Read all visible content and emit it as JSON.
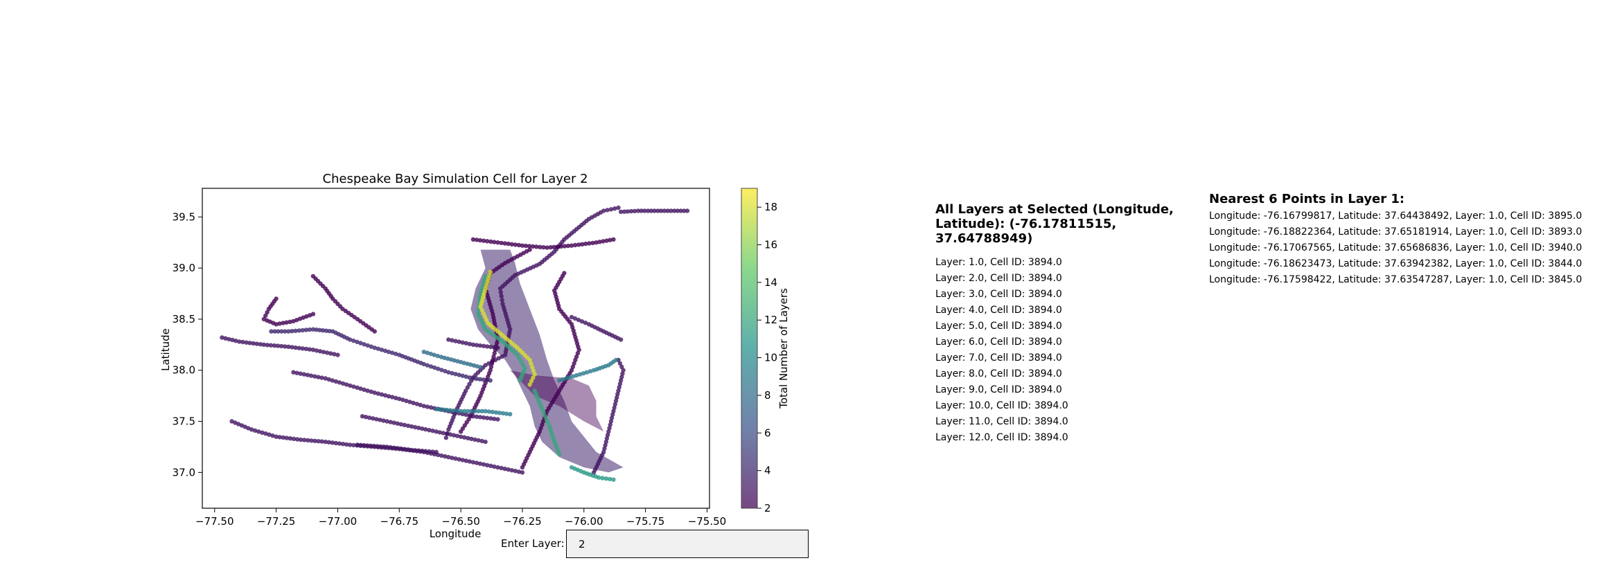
{
  "chart_data": {
    "type": "scatter",
    "title": "Chespeake Bay Simulation Cell for Layer 2",
    "xlabel": "Longitude",
    "ylabel": "Latitude",
    "xlim": [
      -77.55,
      -75.49
    ],
    "ylim": [
      36.65,
      39.78
    ],
    "xticks": [
      -77.5,
      -77.25,
      -77.0,
      -76.75,
      -76.5,
      -76.25,
      -76.0,
      -75.75,
      -75.5
    ],
    "xtick_labels": [
      "−77.50",
      "−77.25",
      "−77.00",
      "−76.75",
      "−76.50",
      "−76.25",
      "−76.00",
      "−75.75",
      "−75.50"
    ],
    "yticks": [
      37.0,
      37.5,
      38.0,
      38.5,
      39.0,
      39.5
    ],
    "ytick_labels": [
      "37.0",
      "37.5",
      "38.0",
      "38.5",
      "39.0",
      "39.5"
    ],
    "grid": false,
    "colorbar": {
      "label": "Total Number of Layers",
      "min": 2,
      "max": 19,
      "ticks": [
        2,
        4,
        6,
        8,
        10,
        12,
        14,
        16,
        18
      ],
      "colormap": "viridis"
    },
    "tracks": [
      {
        "value": 3,
        "points": [
          [
            -76.56,
            37.34
          ],
          [
            -76.55,
            37.42
          ],
          [
            -76.52,
            37.6
          ],
          [
            -76.48,
            37.8
          ],
          [
            -76.45,
            37.93
          ],
          [
            -76.4,
            38.05
          ],
          [
            -76.36,
            38.1
          ],
          [
            -76.32,
            38.15
          ],
          [
            -76.3,
            38.4
          ],
          [
            -76.33,
            38.65
          ],
          [
            -76.34,
            38.8
          ],
          [
            -76.28,
            38.93
          ],
          [
            -76.18,
            39.04
          ],
          [
            -76.12,
            39.16
          ],
          [
            -76.08,
            39.28
          ],
          [
            -76.03,
            39.38
          ],
          [
            -75.98,
            39.48
          ],
          [
            -75.92,
            39.56
          ],
          [
            -75.86,
            39.59
          ]
        ]
      },
      {
        "value": 2,
        "points": [
          [
            -76.5,
            37.4
          ],
          [
            -76.46,
            37.55
          ],
          [
            -76.42,
            37.75
          ],
          [
            -76.38,
            38.0
          ],
          [
            -76.35,
            38.3
          ],
          [
            -76.37,
            38.55
          ],
          [
            -76.4,
            38.8
          ],
          [
            -76.38,
            38.95
          ],
          [
            -76.32,
            39.05
          ],
          [
            -76.22,
            39.18
          ]
        ]
      },
      {
        "value": 2,
        "points": [
          [
            -76.25,
            37.05
          ],
          [
            -76.22,
            37.2
          ],
          [
            -76.18,
            37.4
          ],
          [
            -76.15,
            37.6
          ],
          [
            -76.1,
            37.8
          ],
          [
            -76.05,
            38.0
          ],
          [
            -76.02,
            38.2
          ],
          [
            -76.05,
            38.45
          ],
          [
            -76.1,
            38.6
          ],
          [
            -76.12,
            38.78
          ],
          [
            -76.08,
            38.95
          ]
        ]
      },
      {
        "value": 3,
        "points": [
          [
            -75.96,
            37.0
          ],
          [
            -75.92,
            37.2
          ],
          [
            -75.9,
            37.4
          ],
          [
            -75.88,
            37.6
          ],
          [
            -75.86,
            37.8
          ],
          [
            -75.84,
            38.0
          ],
          [
            -75.86,
            38.1
          ]
        ]
      },
      {
        "value": 12,
        "points": [
          [
            -76.4,
            38.92
          ],
          [
            -76.42,
            38.75
          ],
          [
            -76.43,
            38.55
          ],
          [
            -76.4,
            38.4
          ],
          [
            -76.33,
            38.28
          ],
          [
            -76.27,
            38.15
          ],
          [
            -76.24,
            38.02
          ],
          [
            -76.26,
            37.9
          ]
        ]
      },
      {
        "value": 18,
        "points": [
          [
            -76.38,
            38.96
          ],
          [
            -76.4,
            38.8
          ],
          [
            -76.42,
            38.62
          ],
          [
            -76.39,
            38.46
          ],
          [
            -76.33,
            38.34
          ],
          [
            -76.27,
            38.22
          ],
          [
            -76.22,
            38.1
          ],
          [
            -76.2,
            37.96
          ],
          [
            -76.22,
            37.86
          ]
        ]
      },
      {
        "value": 12,
        "points": [
          [
            -76.2,
            37.8
          ],
          [
            -76.17,
            37.62
          ],
          [
            -76.14,
            37.45
          ],
          [
            -76.12,
            37.3
          ],
          [
            -76.1,
            37.18
          ]
        ]
      },
      {
        "value": 11,
        "points": [
          [
            -76.05,
            37.05
          ],
          [
            -76.0,
            37.0
          ],
          [
            -75.94,
            36.95
          ],
          [
            -75.88,
            36.93
          ]
        ]
      },
      {
        "value": 9,
        "points": [
          [
            -76.1,
            37.9
          ],
          [
            -76.03,
            37.95
          ],
          [
            -75.96,
            38.0
          ],
          [
            -75.9,
            38.05
          ],
          [
            -75.87,
            38.1
          ]
        ]
      },
      {
        "value": 3,
        "points": [
          [
            -77.47,
            38.32
          ],
          [
            -77.4,
            38.28
          ],
          [
            -77.3,
            38.25
          ],
          [
            -77.2,
            38.23
          ],
          [
            -77.1,
            38.2
          ],
          [
            -77.0,
            38.15
          ]
        ]
      },
      {
        "value": 4,
        "points": [
          [
            -77.27,
            38.38
          ],
          [
            -77.2,
            38.38
          ],
          [
            -77.1,
            38.4
          ],
          [
            -77.02,
            38.38
          ],
          [
            -76.95,
            38.3
          ],
          [
            -76.85,
            38.22
          ],
          [
            -76.75,
            38.15
          ],
          [
            -76.65,
            38.06
          ],
          [
            -76.55,
            37.98
          ],
          [
            -76.45,
            37.92
          ],
          [
            -76.38,
            37.9
          ]
        ]
      },
      {
        "value": 3,
        "points": [
          [
            -77.18,
            37.98
          ],
          [
            -77.05,
            37.92
          ],
          [
            -76.95,
            37.85
          ],
          [
            -76.85,
            37.78
          ],
          [
            -76.75,
            37.72
          ],
          [
            -76.65,
            37.65
          ],
          [
            -76.55,
            37.6
          ],
          [
            -76.45,
            37.55
          ],
          [
            -76.35,
            37.52
          ]
        ]
      },
      {
        "value": 2,
        "points": [
          [
            -77.25,
            38.7
          ],
          [
            -77.28,
            38.6
          ],
          [
            -77.3,
            38.5
          ],
          [
            -77.25,
            38.45
          ],
          [
            -77.18,
            38.48
          ],
          [
            -77.1,
            38.55
          ]
        ]
      },
      {
        "value": 2,
        "points": [
          [
            -77.1,
            38.92
          ],
          [
            -77.05,
            38.8
          ],
          [
            -77.02,
            38.7
          ],
          [
            -76.98,
            38.6
          ],
          [
            -76.92,
            38.5
          ],
          [
            -76.85,
            38.38
          ]
        ]
      },
      {
        "value": 3,
        "points": [
          [
            -77.43,
            37.5
          ],
          [
            -77.35,
            37.42
          ],
          [
            -77.25,
            37.35
          ],
          [
            -77.15,
            37.32
          ],
          [
            -77.05,
            37.3
          ],
          [
            -76.95,
            37.27
          ],
          [
            -76.85,
            37.25
          ],
          [
            -76.75,
            37.23
          ],
          [
            -76.65,
            37.2
          ],
          [
            -76.55,
            37.15
          ],
          [
            -76.45,
            37.1
          ],
          [
            -76.35,
            37.05
          ],
          [
            -76.25,
            37.0
          ]
        ]
      },
      {
        "value": 3,
        "points": [
          [
            -76.9,
            37.55
          ],
          [
            -76.8,
            37.5
          ],
          [
            -76.7,
            37.45
          ],
          [
            -76.6,
            37.4
          ],
          [
            -76.5,
            37.35
          ],
          [
            -76.4,
            37.3
          ]
        ]
      },
      {
        "value": 3,
        "points": [
          [
            -76.92,
            37.27
          ],
          [
            -76.8,
            37.25
          ],
          [
            -76.7,
            37.22
          ],
          [
            -76.6,
            37.2
          ]
        ]
      },
      {
        "value": 8,
        "points": [
          [
            -76.65,
            38.18
          ],
          [
            -76.58,
            38.13
          ],
          [
            -76.5,
            38.08
          ],
          [
            -76.42,
            38.03
          ]
        ]
      },
      {
        "value": 9,
        "points": [
          [
            -76.6,
            37.62
          ],
          [
            -76.5,
            37.6
          ],
          [
            -76.4,
            37.6
          ],
          [
            -76.3,
            37.57
          ]
        ]
      },
      {
        "value": 3,
        "points": [
          [
            -76.05,
            38.52
          ],
          [
            -75.98,
            38.45
          ],
          [
            -75.92,
            38.38
          ],
          [
            -75.85,
            38.3
          ]
        ]
      },
      {
        "value": 2,
        "points": [
          [
            -76.45,
            39.28
          ],
          [
            -76.35,
            39.25
          ],
          [
            -76.25,
            39.22
          ],
          [
            -76.15,
            39.2
          ],
          [
            -76.05,
            39.22
          ],
          [
            -75.95,
            39.25
          ],
          [
            -75.88,
            39.28
          ]
        ]
      },
      {
        "value": 3,
        "points": [
          [
            -75.85,
            39.55
          ],
          [
            -75.78,
            39.56
          ],
          [
            -75.7,
            39.56
          ],
          [
            -75.62,
            39.56
          ],
          [
            -75.58,
            39.56
          ]
        ]
      },
      {
        "value": 3,
        "points": [
          [
            -76.55,
            38.3
          ],
          [
            -76.45,
            38.25
          ],
          [
            -76.35,
            38.22
          ]
        ]
      }
    ],
    "blobs": [
      {
        "value": 4,
        "points": [
          [
            -76.42,
            39.18
          ],
          [
            -76.4,
            39.0
          ],
          [
            -76.44,
            38.8
          ],
          [
            -76.46,
            38.6
          ],
          [
            -76.43,
            38.4
          ],
          [
            -76.38,
            38.25
          ],
          [
            -76.32,
            38.1
          ],
          [
            -76.28,
            37.95
          ],
          [
            -76.25,
            37.8
          ],
          [
            -76.22,
            37.65
          ],
          [
            -76.2,
            37.45
          ],
          [
            -76.17,
            37.3
          ],
          [
            -76.1,
            37.15
          ],
          [
            -76.0,
            37.05
          ],
          [
            -75.9,
            37.0
          ],
          [
            -75.84,
            37.05
          ],
          [
            -75.95,
            37.2
          ],
          [
            -76.0,
            37.35
          ],
          [
            -76.05,
            37.5
          ],
          [
            -76.08,
            37.7
          ],
          [
            -76.12,
            37.9
          ],
          [
            -76.15,
            38.1
          ],
          [
            -76.18,
            38.35
          ],
          [
            -76.22,
            38.6
          ],
          [
            -76.26,
            38.85
          ],
          [
            -76.28,
            39.05
          ],
          [
            -76.3,
            39.18
          ]
        ],
        "opacity": 0.55
      },
      {
        "value": 2,
        "points": [
          [
            -76.3,
            38.0
          ],
          [
            -76.2,
            37.95
          ],
          [
            -76.05,
            37.92
          ],
          [
            -75.98,
            37.85
          ],
          [
            -75.95,
            37.7
          ],
          [
            -75.95,
            37.55
          ],
          [
            -75.92,
            37.4
          ],
          [
            -76.0,
            37.5
          ],
          [
            -76.1,
            37.65
          ],
          [
            -76.2,
            37.75
          ]
        ],
        "opacity": 0.45
      }
    ]
  },
  "input": {
    "label": "Enter Layer:",
    "value": "2"
  },
  "all_layers": {
    "title": "All Layers at Selected (Longitude, Latitude): (-76.17811515, 37.64788949)",
    "rows": [
      "Layer: 1.0, Cell ID: 3894.0",
      "Layer: 2.0, Cell ID: 3894.0",
      "Layer: 3.0, Cell ID: 3894.0",
      "Layer: 4.0, Cell ID: 3894.0",
      "Layer: 5.0, Cell ID: 3894.0",
      "Layer: 6.0, Cell ID: 3894.0",
      "Layer: 7.0, Cell ID: 3894.0",
      "Layer: 8.0, Cell ID: 3894.0",
      "Layer: 9.0, Cell ID: 3894.0",
      "Layer: 10.0, Cell ID: 3894.0",
      "Layer: 11.0, Cell ID: 3894.0",
      "Layer: 12.0, Cell ID: 3894.0"
    ]
  },
  "nearest": {
    "title": "Nearest 6 Points in Layer 1:",
    "rows": [
      "Longitude: -76.16799817, Latitude: 37.64438492, Layer: 1.0, Cell ID: 3895.0",
      "Longitude: -76.18822364, Latitude: 37.65181914, Layer: 1.0, Cell ID: 3893.0",
      "Longitude: -76.17067565, Latitude: 37.65686836, Layer: 1.0, Cell ID: 3940.0",
      "Longitude: -76.18623473, Latitude: 37.63942382, Layer: 1.0, Cell ID: 3844.0",
      "Longitude: -76.17598422, Latitude: 37.63547287, Layer: 1.0, Cell ID: 3845.0"
    ]
  }
}
